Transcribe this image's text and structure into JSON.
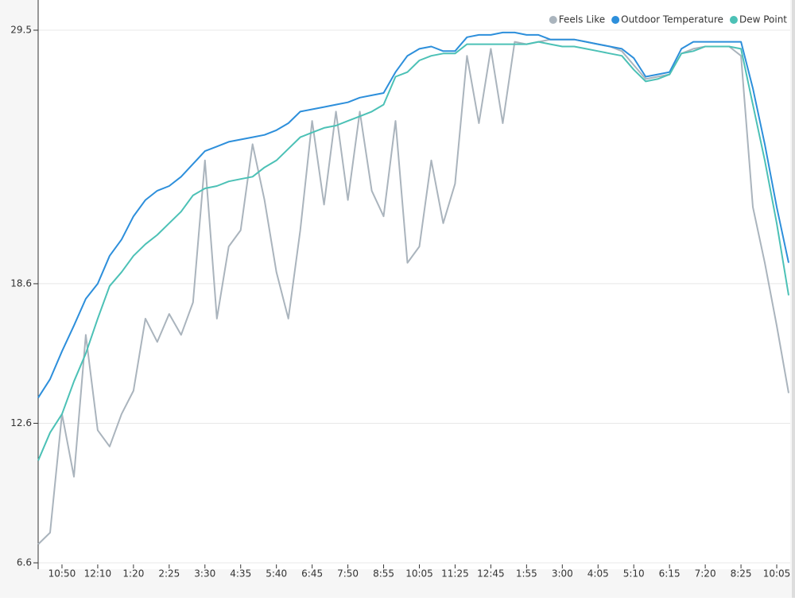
{
  "chart_data": {
    "type": "line",
    "categories": [
      null,
      null,
      "10:50",
      null,
      null,
      "12:10",
      null,
      null,
      "1:20",
      null,
      null,
      "2:25",
      null,
      null,
      "3:30",
      null,
      null,
      "4:35",
      null,
      null,
      "5:40",
      null,
      null,
      "6:45",
      null,
      null,
      "7:50",
      null,
      null,
      "8:55",
      null,
      null,
      "10:05",
      null,
      null,
      "11:25",
      null,
      null,
      "12:45",
      null,
      null,
      "1:55",
      null,
      null,
      "3:00",
      null,
      null,
      "4:05",
      null,
      null,
      "5:10",
      null,
      null,
      "6:15",
      null,
      null,
      "7:20",
      null,
      null,
      "8:25",
      null,
      null,
      "10:05",
      null
    ],
    "series": [
      {
        "name": "Feels Like",
        "color": "#aab4bd",
        "values": [
          7.4,
          7.9,
          13.0,
          10.3,
          16.4,
          12.3,
          11.6,
          13.0,
          14.0,
          17.1,
          16.1,
          17.3,
          16.4,
          17.8,
          23.9,
          17.1,
          20.2,
          20.9,
          24.6,
          22.2,
          19.1,
          17.1,
          20.9,
          25.6,
          22.0,
          26.0,
          22.2,
          26.0,
          22.6,
          21.5,
          25.6,
          19.5,
          20.2,
          23.9,
          21.2,
          22.9,
          28.4,
          25.5,
          28.7,
          25.5,
          29.0,
          28.9,
          29.0,
          29.1,
          29.1,
          29.1,
          29.0,
          28.9,
          28.8,
          28.6,
          28.0,
          27.4,
          27.5,
          27.6,
          28.5,
          28.7,
          28.8,
          28.8,
          28.8,
          28.4,
          21.9,
          19.5,
          16.8,
          13.9
        ]
      },
      {
        "name": "Outdoor Temperature",
        "color": "#2d8fdb",
        "values": [
          13.7,
          14.5,
          15.7,
          16.8,
          17.95,
          18.6,
          19.8,
          20.5,
          21.5,
          22.2,
          22.6,
          22.8,
          23.2,
          23.75,
          24.3,
          24.5,
          24.7,
          24.8,
          24.9,
          25.0,
          25.2,
          25.5,
          26.0,
          26.1,
          26.2,
          26.3,
          26.4,
          26.6,
          26.7,
          26.8,
          27.7,
          28.4,
          28.7,
          28.8,
          28.6,
          28.6,
          29.2,
          29.3,
          29.3,
          29.4,
          29.4,
          29.3,
          29.3,
          29.1,
          29.1,
          29.1,
          29.0,
          28.9,
          28.8,
          28.7,
          28.3,
          27.5,
          27.6,
          27.7,
          28.7,
          29.0,
          29.0,
          29.0,
          29.0,
          29.0,
          27.0,
          24.6,
          21.9,
          19.5
        ]
      },
      {
        "name": "Dew Point",
        "color": "#4cc1b6",
        "values": [
          11.0,
          12.2,
          13.0,
          14.4,
          15.6,
          17.1,
          18.5,
          19.1,
          19.8,
          20.3,
          20.7,
          21.2,
          21.7,
          22.4,
          22.7,
          22.8,
          23.0,
          23.1,
          23.2,
          23.6,
          23.9,
          24.4,
          24.9,
          25.1,
          25.3,
          25.4,
          25.6,
          25.8,
          26.0,
          26.3,
          27.5,
          27.7,
          28.2,
          28.4,
          28.5,
          28.5,
          28.9,
          28.9,
          28.9,
          28.9,
          28.9,
          28.9,
          29.0,
          28.9,
          28.8,
          28.8,
          28.7,
          28.6,
          28.5,
          28.4,
          27.8,
          27.3,
          27.4,
          27.6,
          28.5,
          28.6,
          28.8,
          28.8,
          28.8,
          28.7,
          26.3,
          23.9,
          21.2,
          18.1
        ]
      }
    ],
    "ylim": [
      6.6,
      29.5
    ],
    "yticks": [
      6.6,
      12.6,
      18.6,
      29.5
    ],
    "grid": true,
    "legend": "top-right"
  }
}
